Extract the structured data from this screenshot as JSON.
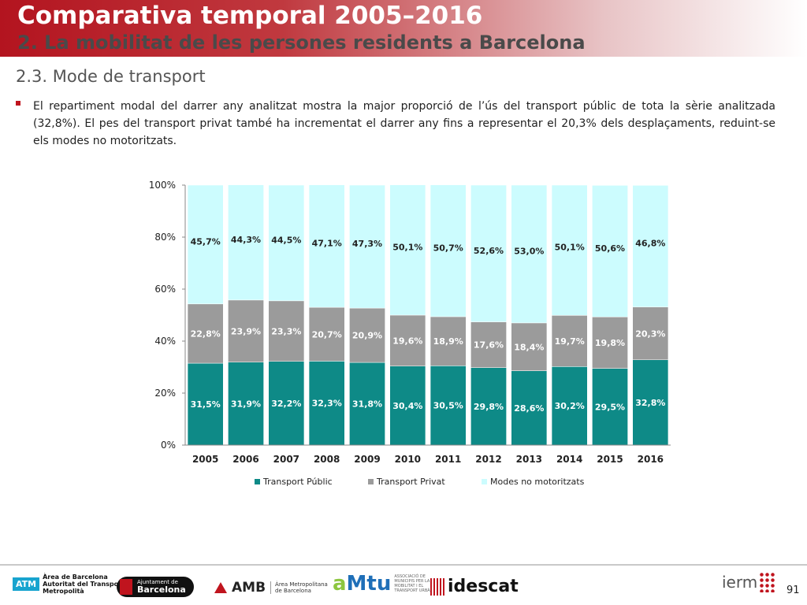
{
  "header": {
    "title": "Comparativa temporal 2005–2016",
    "subtitle": "2. La mobilitat de les persones residents a Barcelona"
  },
  "section_title": "2.3. Mode de transport",
  "paragraph": "El repartiment modal del darrer any analitzat mostra la major proporció de l’ús del transport públic de tota la sèrie analitzada (32,8%). El pes del transport privat també ha incrementat el darrer any fins a representar el 20,3% dels desplaçaments, reduint-se els modes no motoritzats.",
  "colors": {
    "accent": "#c0141e",
    "public": "#0e8a87",
    "private": "#9b9b9b",
    "non_motorized": "#ccfcfe"
  },
  "chart_data": {
    "type": "bar",
    "stacked": true,
    "categories": [
      "2005",
      "2006",
      "2007",
      "2008",
      "2009",
      "2010",
      "2011",
      "2012",
      "2013",
      "2014",
      "2015",
      "2016"
    ],
    "series": [
      {
        "name": "Transport Públic",
        "values": [
          31.5,
          31.9,
          32.2,
          32.3,
          31.8,
          30.4,
          30.5,
          29.8,
          28.6,
          30.2,
          29.5,
          32.8
        ],
        "labels": [
          "31,5%",
          "31,9%",
          "32,2%",
          "32,3%",
          "31,8%",
          "30,4%",
          "30,5%",
          "29,8%",
          "28,6%",
          "30,2%",
          "29,5%",
          "32,8%"
        ]
      },
      {
        "name": "Transport Privat",
        "values": [
          22.8,
          23.9,
          23.3,
          20.7,
          20.9,
          19.6,
          18.9,
          17.6,
          18.4,
          19.7,
          19.8,
          20.3
        ],
        "labels": [
          "22,8%",
          "23,9%",
          "23,3%",
          "20,7%",
          "20,9%",
          "19,6%",
          "18,9%",
          "17,6%",
          "18,4%",
          "19,7%",
          "19,8%",
          "20,3%"
        ]
      },
      {
        "name": "Modes no motoritzats",
        "values": [
          45.7,
          44.3,
          44.5,
          47.1,
          47.3,
          50.1,
          50.7,
          52.6,
          53.0,
          50.1,
          50.6,
          46.8
        ],
        "labels": [
          "45,7%",
          "44,3%",
          "44,5%",
          "47,1%",
          "47,3%",
          "50,1%",
          "50,7%",
          "52,6%",
          "53,0%",
          "50,1%",
          "50,6%",
          "46,8%"
        ]
      }
    ],
    "yticks": [
      "0%",
      "20%",
      "40%",
      "60%",
      "80%",
      "100%"
    ],
    "ylim": [
      0,
      100
    ],
    "grid": false,
    "legend_position": "bottom"
  },
  "footer": {
    "atm_badge": "ATM",
    "atm_text": [
      "Àrea de Barcelona",
      "Autoritat del Transport",
      "Metropolità"
    ],
    "bcn_small": "Ajuntament de",
    "bcn_big": "Barcelona",
    "amb_text": "AMB",
    "amb_sub": [
      "Àrea Metropolitana",
      "de Barcelona"
    ],
    "amtu_a": "a",
    "amtu_m": "M",
    "amtu_tu": "tu",
    "amtu_sub": "ASSOCIACIÓ DE MUNICIPIS PER LA MOBILITAT I EL TRANSPORT URBÀ",
    "idescat": "idescat",
    "ierm": "ierm",
    "page_number": "91"
  }
}
